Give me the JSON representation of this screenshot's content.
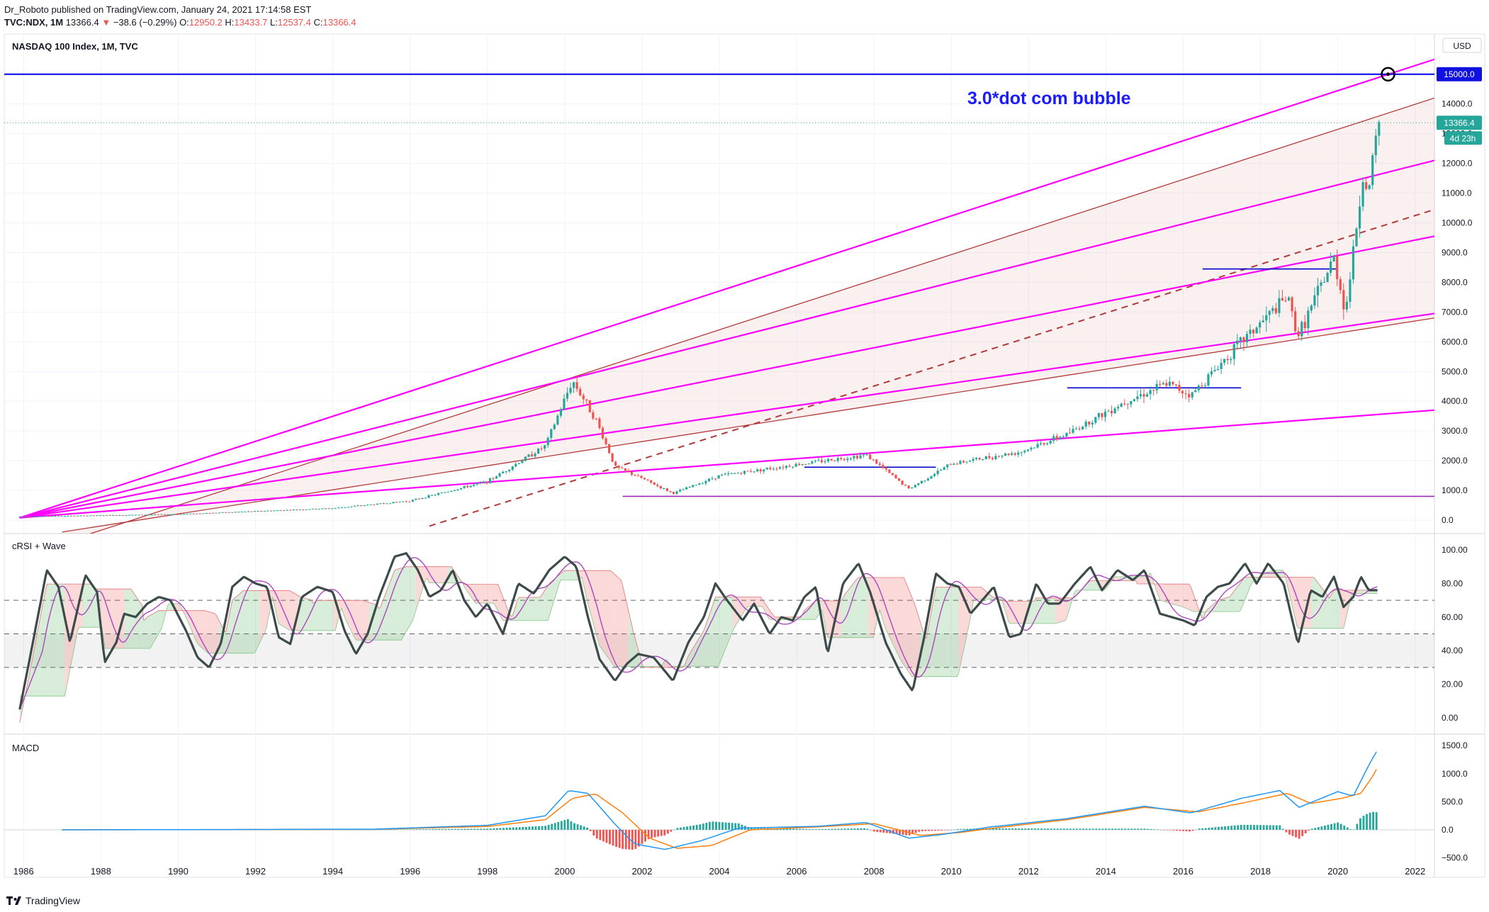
{
  "header": {
    "publisher": "Dr_Roboto published on TradingView.com, January 24, 2021 17:14:58 EST",
    "symbol": "TVC:NDX, 1M",
    "last": "13366.4",
    "change_arrow": "▼",
    "change": "−38.6 (−0.29%)",
    "o_label": "O:",
    "o": "12950.2",
    "h_label": "H:",
    "h": "13433.7",
    "l_label": "L:",
    "l": "12537.4",
    "c_label": "C:",
    "c": "13366.4"
  },
  "footer": {
    "brand": "TradingView",
    "logo_icon": "tradingview-logo-icon"
  },
  "colors": {
    "up": "#26a69a",
    "down": "#ef5350",
    "magenta": "#ff00ff",
    "channel": "#b23a3a",
    "blue": "#0000ee"
  },
  "chart_data": [
    {
      "type": "candlestick",
      "title": "NASDAQ 100 Index, 1M, TVC",
      "currency": "USD",
      "ylim": [
        0,
        16000
      ],
      "xlim": [
        1985.5,
        2022.5
      ],
      "y_ticks": [
        "0.0",
        "1000.0",
        "2000.0",
        "3000.0",
        "4000.0",
        "5000.0",
        "6000.0",
        "7000.0",
        "8000.0",
        "9000.0",
        "10000.0",
        "11000.0",
        "12000.0",
        "13000.0",
        "14000.0"
      ],
      "x_ticks": [
        "1986",
        "1988",
        "1990",
        "1992",
        "1994",
        "1996",
        "1998",
        "2000",
        "2002",
        "2004",
        "2006",
        "2008",
        "2010",
        "2012",
        "2014",
        "2016",
        "2018",
        "2020",
        "2022"
      ],
      "price_path": [
        [
          1985.9,
          120
        ],
        [
          1990,
          200
        ],
        [
          1994,
          400
        ],
        [
          1996,
          650
        ],
        [
          1998,
          1300
        ],
        [
          1999.5,
          2500
        ],
        [
          2000.2,
          4700
        ],
        [
          2000.8,
          3400
        ],
        [
          2001.3,
          1800
        ],
        [
          2002.0,
          1400
        ],
        [
          2002.8,
          900
        ],
        [
          2004.0,
          1500
        ],
        [
          2007.8,
          2200
        ],
        [
          2008.9,
          1050
        ],
        [
          2010,
          1900
        ],
        [
          2011.8,
          2300
        ],
        [
          2013,
          2900
        ],
        [
          2014.5,
          4000
        ],
        [
          2015.6,
          4600
        ],
        [
          2016.2,
          4200
        ],
        [
          2017.5,
          6000
        ],
        [
          2018.7,
          7500
        ],
        [
          2018.97,
          6200
        ],
        [
          2019.9,
          8800
        ],
        [
          2020.2,
          7000
        ],
        [
          2020.65,
          11600
        ],
        [
          2020.8,
          11000
        ],
        [
          2021.05,
          13366.4
        ]
      ],
      "price_line_label": "13366.4",
      "countdown_label": "4d 23h",
      "target_label": "15000.0",
      "annotation": "3.0*dot com bubble",
      "horizontal_levels": [
        {
          "value": 15000,
          "x_from": 1985.5,
          "x_to": 2022.5,
          "color": "#0000ee"
        },
        {
          "value": 8450,
          "x_from": 2016.5,
          "x_to": 2020.0,
          "color": "#0000cc"
        },
        {
          "value": 4450,
          "x_from": 2013.0,
          "x_to": 2017.5,
          "color": "#0000cc"
        },
        {
          "value": 1780,
          "x_from": 2006.2,
          "x_to": 2009.6,
          "color": "#0000cc"
        },
        {
          "value": 800,
          "x_from": 2001.5,
          "x_to": 2022.5,
          "color": "#9c27b0"
        }
      ],
      "fan_origin": [
        1985.9,
        80
      ],
      "fan_lines_end_values": [
        15500,
        12100,
        9550,
        6950,
        3700
      ],
      "channel_upper": [
        [
          2000.2,
          4800
        ],
        [
          2022.5,
          14200
        ]
      ],
      "channel_lower": [
        [
          1987.0,
          -400
        ],
        [
          2022.5,
          6800
        ]
      ],
      "channel_mid": [
        [
          1996.5,
          -200
        ],
        [
          2022.5,
          10450
        ]
      ]
    },
    {
      "type": "line",
      "title": "cRSI + Wave",
      "ylim": [
        -10,
        110
      ],
      "y_ticks": [
        "0.00",
        "20.00",
        "40.00",
        "60.00",
        "80.00",
        "100.00"
      ],
      "dashed_levels": [
        30,
        50,
        70
      ],
      "series": [
        {
          "values_xy": [
            [
              1985.9,
              5
            ],
            [
              1986.2,
              40
            ],
            [
              1986.6,
              88
            ],
            [
              1986.9,
              78
            ],
            [
              1987.2,
              45
            ],
            [
              1987.6,
              85
            ],
            [
              1987.9,
              75
            ],
            [
              1988.1,
              33
            ],
            [
              1988.4,
              45
            ],
            [
              1988.6,
              62
            ],
            [
              1988.9,
              60
            ],
            [
              1989.2,
              68
            ],
            [
              1989.5,
              72
            ],
            [
              1989.8,
              70
            ],
            [
              1990.2,
              52
            ],
            [
              1990.5,
              36
            ],
            [
              1990.8,
              30
            ],
            [
              1991.1,
              44
            ],
            [
              1991.4,
              78
            ],
            [
              1991.7,
              84
            ],
            [
              1992.0,
              80
            ],
            [
              1992.3,
              78
            ],
            [
              1992.6,
              48
            ],
            [
              1992.9,
              44
            ],
            [
              1993.2,
              72
            ],
            [
              1993.6,
              78
            ],
            [
              1994.0,
              75
            ],
            [
              1994.3,
              52
            ],
            [
              1994.6,
              38
            ],
            [
              1994.9,
              50
            ],
            [
              1995.2,
              72
            ],
            [
              1995.6,
              96
            ],
            [
              1995.9,
              98
            ],
            [
              1996.2,
              88
            ],
            [
              1996.5,
              72
            ],
            [
              1996.8,
              76
            ],
            [
              1997.1,
              88
            ],
            [
              1997.4,
              70
            ],
            [
              1997.7,
              60
            ],
            [
              1998.0,
              68
            ],
            [
              1998.4,
              50
            ],
            [
              1998.8,
              80
            ],
            [
              1999.2,
              74
            ],
            [
              1999.6,
              88
            ],
            [
              2000.0,
              96
            ],
            [
              2000.3,
              90
            ],
            [
              2000.6,
              60
            ],
            [
              2000.9,
              35
            ],
            [
              2001.3,
              22
            ],
            [
              2001.6,
              32
            ],
            [
              2001.9,
              38
            ],
            [
              2002.3,
              36
            ],
            [
              2002.8,
              22
            ],
            [
              2003.2,
              45
            ],
            [
              2003.6,
              60
            ],
            [
              2003.9,
              80
            ],
            [
              2004.2,
              70
            ],
            [
              2004.6,
              58
            ],
            [
              2004.9,
              68
            ],
            [
              2005.3,
              50
            ],
            [
              2005.6,
              60
            ],
            [
              2005.9,
              58
            ],
            [
              2006.2,
              72
            ],
            [
              2006.5,
              78
            ],
            [
              2006.8,
              38
            ],
            [
              2007.2,
              80
            ],
            [
              2007.6,
              92
            ],
            [
              2007.9,
              75
            ],
            [
              2008.3,
              45
            ],
            [
              2008.7,
              26
            ],
            [
              2009.0,
              16
            ],
            [
              2009.3,
              48
            ],
            [
              2009.6,
              86
            ],
            [
              2009.9,
              80
            ],
            [
              2010.2,
              78
            ],
            [
              2010.5,
              62
            ],
            [
              2010.8,
              70
            ],
            [
              2011.1,
              78
            ],
            [
              2011.5,
              48
            ],
            [
              2011.8,
              50
            ],
            [
              2012.2,
              80
            ],
            [
              2012.5,
              68
            ],
            [
              2012.8,
              68
            ],
            [
              2013.2,
              80
            ],
            [
              2013.6,
              90
            ],
            [
              2013.9,
              76
            ],
            [
              2014.3,
              88
            ],
            [
              2014.7,
              82
            ],
            [
              2015.0,
              88
            ],
            [
              2015.4,
              62
            ],
            [
              2015.7,
              60
            ],
            [
              2016.0,
              58
            ],
            [
              2016.3,
              55
            ],
            [
              2016.6,
              72
            ],
            [
              2016.9,
              78
            ],
            [
              2017.2,
              80
            ],
            [
              2017.6,
              92
            ],
            [
              2017.9,
              80
            ],
            [
              2018.2,
              92
            ],
            [
              2018.6,
              80
            ],
            [
              2018.97,
              44
            ],
            [
              2019.3,
              76
            ],
            [
              2019.6,
              72
            ],
            [
              2019.9,
              84
            ],
            [
              2020.15,
              66
            ],
            [
              2020.4,
              72
            ],
            [
              2020.6,
              84
            ],
            [
              2020.8,
              76
            ],
            [
              2021.05,
              76
            ]
          ]
        }
      ]
    },
    {
      "type": "line",
      "title": "MACD",
      "ylim": [
        -550,
        1650
      ],
      "y_ticks": [
        "−500.0",
        "0.0",
        "500.0",
        "1000.0",
        "1500.0"
      ],
      "series": [
        {
          "values_xy": [
            [
              1987.0,
              0
            ],
            [
              1995,
              10
            ],
            [
              1998,
              80
            ],
            [
              1999.5,
              250
            ],
            [
              2000.1,
              700
            ],
            [
              2000.6,
              650
            ],
            [
              2001.3,
              100
            ],
            [
              2001.8,
              -250
            ],
            [
              2002.6,
              -350
            ],
            [
              2003.5,
              -200
            ],
            [
              2004.5,
              30
            ],
            [
              2006.5,
              60
            ],
            [
              2007.8,
              130
            ],
            [
              2008.9,
              -150
            ],
            [
              2009.8,
              -80
            ],
            [
              2011,
              50
            ],
            [
              2013,
              200
            ],
            [
              2015,
              420
            ],
            [
              2016.2,
              300
            ],
            [
              2017.5,
              560
            ],
            [
              2018.5,
              700
            ],
            [
              2019.0,
              400
            ],
            [
              2020.0,
              680
            ],
            [
              2020.4,
              600
            ],
            [
              2020.8,
              1150
            ],
            [
              2021.05,
              1450
            ]
          ]
        },
        {
          "values_xy": [
            [
              1987.0,
              0
            ],
            [
              1995,
              8
            ],
            [
              1998,
              60
            ],
            [
              1999.5,
              180
            ],
            [
              2000.2,
              560
            ],
            [
              2000.8,
              640
            ],
            [
              2001.5,
              300
            ],
            [
              2002.2,
              -150
            ],
            [
              2002.9,
              -330
            ],
            [
              2003.8,
              -280
            ],
            [
              2004.8,
              0
            ],
            [
              2006.5,
              50
            ],
            [
              2008.0,
              110
            ],
            [
              2009.2,
              -100
            ],
            [
              2010.2,
              -50
            ],
            [
              2011.2,
              40
            ],
            [
              2013,
              180
            ],
            [
              2015,
              400
            ],
            [
              2016.4,
              320
            ],
            [
              2017.7,
              500
            ],
            [
              2018.7,
              650
            ],
            [
              2019.3,
              470
            ],
            [
              2020.1,
              560
            ],
            [
              2020.6,
              650
            ],
            [
              2020.9,
              950
            ],
            [
              2021.05,
              1140
            ]
          ]
        }
      ]
    }
  ]
}
